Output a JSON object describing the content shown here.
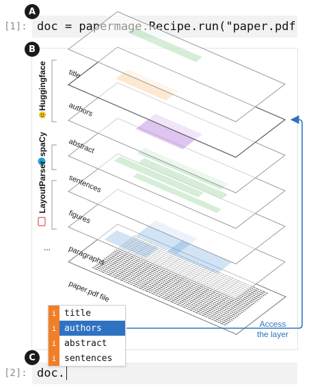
{
  "badges": {
    "a": "A",
    "b": "B",
    "c": "C"
  },
  "cell1": {
    "prompt": "[1]:",
    "code": "doc = papermage.Recipe.run(\"paper.pdf\")"
  },
  "cell2": {
    "prompt": "[2]:",
    "code": "doc."
  },
  "layers": [
    "title",
    "authors",
    "abstract",
    "sentences",
    "figures",
    "paragraphs",
    "paper.pdf file"
  ],
  "tools": [
    "Huggingface",
    "spaCy",
    "LayoutParser",
    "..."
  ],
  "autocomplete": {
    "icon": "i",
    "items": [
      "title",
      "authors",
      "abstract",
      "sentences"
    ],
    "selected": "authors"
  },
  "annotation": {
    "line1": "Access",
    "line2": "the layer"
  },
  "colors": {
    "title": "#5dbb63",
    "authors": "#f7a54a",
    "abstract": "#a05bd6",
    "sentences": "#5dbb63",
    "paragraphs": "#4a90d9",
    "accent": "#2f72c2",
    "badge": "#1a1a1a",
    "completion_icon": "#f07f27"
  }
}
